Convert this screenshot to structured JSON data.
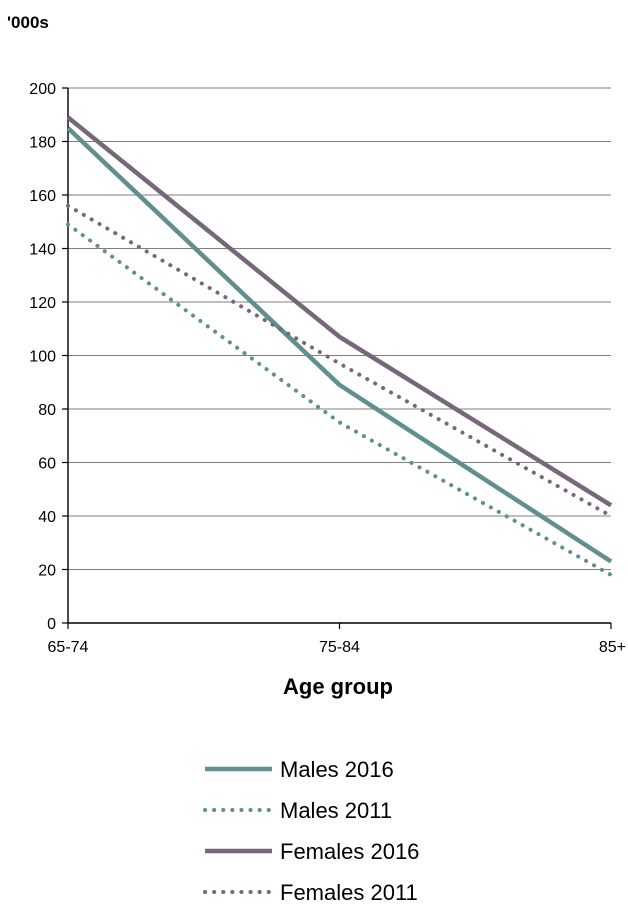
{
  "chart_data": {
    "type": "line",
    "unit_label": "'000s",
    "xlabel": "Age group",
    "ylabel": "",
    "ylim": [
      0,
      200
    ],
    "yticks": [
      0,
      20,
      40,
      60,
      80,
      100,
      120,
      140,
      160,
      180,
      200
    ],
    "categories": [
      "65-74",
      "75-84",
      "85+"
    ],
    "grid": true,
    "legend_position": "bottom",
    "series": [
      {
        "name": "Males 2016",
        "values": [
          185,
          89,
          23
        ],
        "color": "#5f8f8e",
        "style": "solid"
      },
      {
        "name": "Males 2011",
        "values": [
          149,
          75,
          18
        ],
        "color": "#5f8f8e",
        "style": "dotted"
      },
      {
        "name": "Females 2016",
        "values": [
          189,
          107,
          44
        ],
        "color": "#76687a",
        "style": "solid"
      },
      {
        "name": "Females 2011",
        "values": [
          156,
          97,
          40
        ],
        "color": "#76687a",
        "style": "dotted"
      }
    ]
  }
}
